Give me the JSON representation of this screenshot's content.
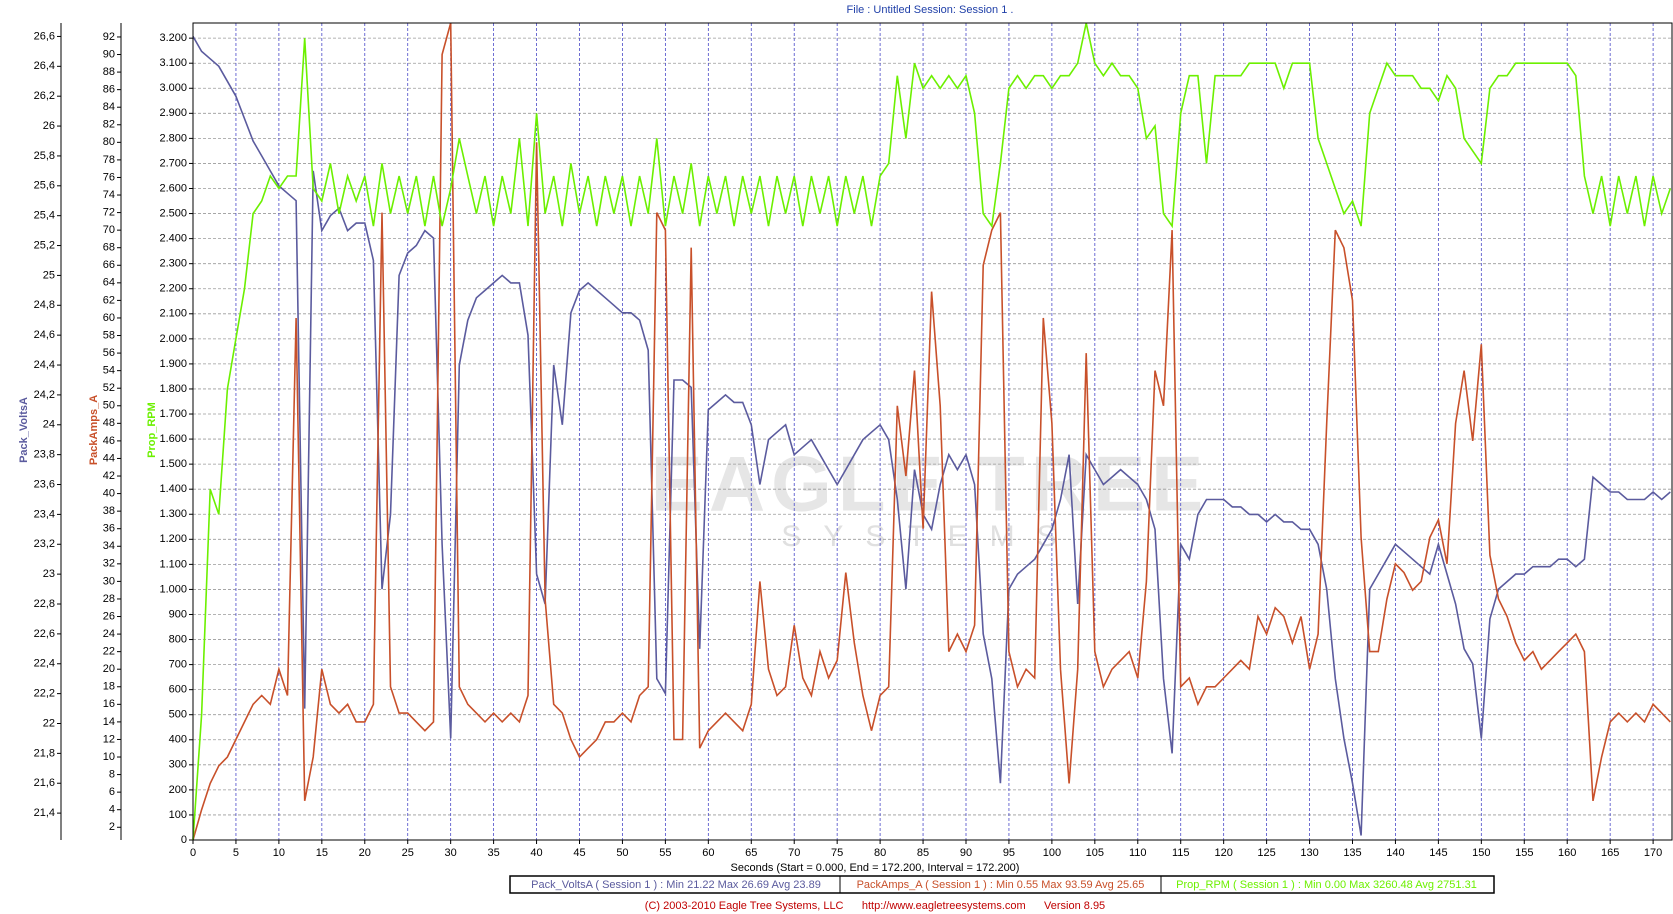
{
  "chart_data": {
    "type": "line",
    "title": "File : Untitled   Session: Session 1 .",
    "xlabel": "Seconds (Start = 0.000,  End = 172.200,  Interval = 172.200)",
    "footer": "(C) 2003-2010 Eagle Tree Systems, LLC      http://www.eagletreesystems.com      Version 8.95",
    "watermark": [
      "EAGLE TREE",
      "SYSTEMS"
    ],
    "ylabel": "Prop_RPM",
    "y2label": "PackAmps_A",
    "y3label": "Pack_VoltsA",
    "grid": true,
    "xlim": [
      0,
      172.2
    ],
    "xticks": [
      0,
      5,
      10,
      15,
      20,
      25,
      30,
      35,
      40,
      45,
      50,
      55,
      60,
      65,
      70,
      75,
      80,
      85,
      90,
      95,
      100,
      105,
      110,
      115,
      120,
      125,
      130,
      135,
      140,
      145,
      150,
      155,
      160,
      165,
      170
    ],
    "ylim": [
      0,
      3260.48
    ],
    "yticks": [
      0,
      100,
      200,
      300,
      400,
      500,
      600,
      700,
      800,
      900,
      {
        "value": 1000,
        "label": "1.000"
      },
      {
        "value": 1100,
        "label": "1.100"
      },
      {
        "value": 1200,
        "label": "1.200"
      },
      {
        "value": 1300,
        "label": "1.300"
      },
      {
        "value": 1400,
        "label": "1.400"
      },
      {
        "value": 1500,
        "label": "1.500"
      },
      {
        "value": 1600,
        "label": "1.600"
      },
      {
        "value": 1700,
        "label": "1.700"
      },
      {
        "value": 1800,
        "label": "1.800"
      },
      {
        "value": 1900,
        "label": "1.900"
      },
      {
        "value": 2000,
        "label": "2.000"
      },
      {
        "value": 2100,
        "label": "2.100"
      },
      {
        "value": 2200,
        "label": "2.200"
      },
      {
        "value": 2300,
        "label": "2.300"
      },
      {
        "value": 2400,
        "label": "2.400"
      },
      {
        "value": 2500,
        "label": "2.500"
      },
      {
        "value": 2600,
        "label": "2.600"
      },
      {
        "value": 2700,
        "label": "2.700"
      },
      {
        "value": 2800,
        "label": "2.800"
      },
      {
        "value": 2900,
        "label": "2.900"
      },
      {
        "value": 3000,
        "label": "3.000"
      },
      {
        "value": 3100,
        "label": "3.100"
      },
      {
        "value": 3200,
        "label": "3.200"
      }
    ],
    "y2lim": [
      0.55,
      93.59
    ],
    "y2ticks": [
      2,
      4,
      6,
      8,
      10,
      12,
      14,
      16,
      18,
      20,
      22,
      24,
      26,
      28,
      30,
      32,
      34,
      36,
      38,
      40,
      42,
      44,
      46,
      48,
      50,
      52,
      54,
      56,
      58,
      60,
      62,
      64,
      66,
      68,
      70,
      72,
      74,
      76,
      78,
      80,
      82,
      84,
      86,
      88,
      90,
      92
    ],
    "y3lim": [
      21.22,
      26.69
    ],
    "y3ticks": [
      {
        "value": 21.4,
        "label": "21,4"
      },
      {
        "value": 21.6,
        "label": "21,6"
      },
      {
        "value": 21.8,
        "label": "21,8"
      },
      22,
      {
        "value": 22.2,
        "label": "22,2"
      },
      {
        "value": 22.4,
        "label": "22,4"
      },
      {
        "value": 22.6,
        "label": "22,6"
      },
      {
        "value": 22.8,
        "label": "22,8"
      },
      23,
      {
        "value": 23.2,
        "label": "23,2"
      },
      {
        "value": 23.4,
        "label": "23,4"
      },
      {
        "value": 23.6,
        "label": "23,6"
      },
      {
        "value": 23.8,
        "label": "23,8"
      },
      24,
      {
        "value": 24.2,
        "label": "24,2"
      },
      {
        "value": 24.4,
        "label": "24,4"
      },
      {
        "value": 24.6,
        "label": "24,6"
      },
      {
        "value": 24.8,
        "label": "24,8"
      },
      25,
      {
        "value": 25.2,
        "label": "25,2"
      },
      {
        "value": 25.4,
        "label": "25,4"
      },
      {
        "value": 25.6,
        "label": "25,6"
      },
      {
        "value": 25.8,
        "label": "25,8"
      },
      26,
      {
        "value": 26.2,
        "label": "26,2"
      },
      {
        "value": 26.4,
        "label": "26,4"
      },
      {
        "value": 26.6,
        "label": "26,6"
      }
    ],
    "legend": [
      "Pack_VoltsA ( Session 1 ) : Min 21.22   Max 26.69   Avg 23.89",
      "PackAmps_A ( Session 1 ) : Min 0.55   Max 93.59   Avg 25.65",
      "Prop_RPM ( Session 1 ) : Min 0.00   Max 3260.48   Avg 2751.31"
    ],
    "x": [
      0,
      1,
      2,
      3,
      4,
      5,
      6,
      7,
      8,
      9,
      10,
      11,
      12,
      13,
      14,
      15,
      16,
      17,
      18,
      19,
      20,
      21,
      22,
      23,
      24,
      25,
      26,
      27,
      28,
      29,
      30,
      31,
      32,
      33,
      34,
      35,
      36,
      37,
      38,
      39,
      40,
      41,
      42,
      43,
      44,
      45,
      46,
      47,
      48,
      49,
      50,
      51,
      52,
      53,
      54,
      55,
      56,
      57,
      58,
      59,
      60,
      61,
      62,
      63,
      64,
      65,
      66,
      67,
      68,
      69,
      70,
      71,
      72,
      73,
      74,
      75,
      76,
      77,
      78,
      79,
      80,
      81,
      82,
      83,
      84,
      85,
      86,
      87,
      88,
      89,
      90,
      91,
      92,
      93,
      94,
      95,
      96,
      97,
      98,
      99,
      100,
      101,
      102,
      103,
      104,
      105,
      106,
      107,
      108,
      109,
      110,
      111,
      112,
      113,
      114,
      115,
      116,
      117,
      118,
      119,
      120,
      121,
      122,
      123,
      124,
      125,
      126,
      127,
      128,
      129,
      130,
      131,
      132,
      133,
      134,
      135,
      136,
      137,
      138,
      139,
      140,
      141,
      142,
      143,
      144,
      145,
      146,
      147,
      148,
      149,
      150,
      151,
      152,
      153,
      154,
      155,
      156,
      157,
      158,
      159,
      160,
      161,
      162,
      163,
      164,
      165,
      166,
      167,
      168,
      169,
      170,
      171,
      172
    ],
    "series": [
      {
        "name": "Pack_VoltsA",
        "color": "#5b5b9e",
        "axis": "y3",
        "values": [
          26.6,
          26.5,
          26.45,
          26.4,
          26.3,
          26.2,
          26.05,
          25.9,
          25.8,
          25.7,
          25.6,
          25.55,
          25.5,
          22.1,
          25.7,
          25.3,
          25.4,
          25.45,
          25.3,
          25.35,
          25.35,
          25.1,
          22.9,
          23.4,
          25.0,
          25.15,
          25.2,
          25.3,
          25.25,
          23.2,
          21.9,
          24.4,
          24.7,
          24.85,
          24.9,
          24.95,
          25.0,
          24.95,
          24.95,
          24.6,
          23.0,
          22.8,
          24.4,
          24.0,
          24.75,
          24.9,
          24.95,
          24.9,
          24.85,
          24.8,
          24.75,
          24.75,
          24.7,
          24.5,
          22.3,
          22.2,
          24.3,
          24.3,
          24.25,
          22.5,
          24.1,
          24.15,
          24.2,
          24.15,
          24.15,
          24.0,
          23.6,
          23.9,
          23.95,
          24.0,
          23.8,
          23.85,
          23.9,
          23.8,
          23.7,
          23.6,
          23.7,
          23.8,
          23.9,
          23.95,
          24.0,
          23.9,
          23.5,
          22.9,
          23.7,
          23.4,
          23.3,
          23.6,
          23.8,
          23.7,
          23.8,
          23.6,
          22.6,
          22.3,
          21.6,
          22.9,
          23.0,
          23.05,
          23.1,
          23.2,
          23.3,
          23.5,
          23.8,
          22.8,
          23.8,
          23.7,
          23.6,
          23.65,
          23.7,
          23.65,
          23.6,
          23.5,
          23.3,
          22.3,
          21.8,
          23.2,
          23.1,
          23.4,
          23.5,
          23.5,
          23.5,
          23.45,
          23.45,
          23.4,
          23.4,
          23.35,
          23.4,
          23.35,
          23.35,
          23.3,
          23.3,
          23.2,
          22.9,
          22.3,
          21.9,
          21.6,
          21.25,
          22.9,
          23.0,
          23.1,
          23.2,
          23.15,
          23.1,
          23.05,
          23.0,
          23.2,
          23.0,
          22.8,
          22.5,
          22.4,
          21.9,
          22.7,
          22.9,
          22.95,
          23.0,
          23.0,
          23.05,
          23.05,
          23.05,
          23.1,
          23.1,
          23.05,
          23.1,
          23.65,
          23.6,
          23.55,
          23.55,
          23.5,
          23.5,
          23.5,
          23.55,
          23.5,
          23.55
        ]
      },
      {
        "name": "PackAmps_A",
        "color": "#c8502a",
        "axis": "y2",
        "values": [
          0.55,
          4,
          7,
          9,
          10,
          12,
          14,
          16,
          17,
          16,
          20,
          17,
          60,
          5,
          10,
          20,
          16,
          15,
          16,
          14,
          14,
          16,
          72,
          18,
          15,
          15,
          14,
          13,
          14,
          90,
          93.59,
          18,
          16,
          15,
          14,
          15,
          14,
          15,
          14,
          17,
          80,
          28,
          16,
          15,
          12,
          10,
          11,
          12,
          14,
          14,
          15,
          14,
          17,
          18,
          72,
          70,
          12,
          12,
          68,
          11,
          13,
          14,
          15,
          14,
          13,
          16,
          30,
          20,
          17,
          18,
          25,
          19,
          17,
          22,
          19,
          21,
          31,
          23,
          17,
          13,
          17,
          18,
          50,
          42,
          54,
          36,
          63,
          50,
          22,
          24,
          22,
          25,
          66,
          70,
          72,
          22,
          18,
          20,
          19,
          60,
          48,
          20,
          7,
          20,
          56,
          22,
          18,
          20,
          21,
          22,
          19,
          30,
          54,
          50,
          70,
          18,
          19,
          16,
          18,
          18,
          19,
          20,
          21,
          20,
          26,
          24,
          27,
          26,
          23,
          26,
          20,
          24,
          48,
          70,
          68,
          62,
          35,
          22,
          22,
          28,
          32,
          31,
          29,
          30,
          35,
          37,
          32,
          48,
          54,
          46,
          57,
          33,
          28,
          26,
          23,
          21,
          22,
          20,
          21,
          22,
          23,
          24,
          22,
          5,
          10,
          14,
          15,
          14,
          15,
          14,
          16,
          15,
          14
        ]
      },
      {
        "name": "Prop_RPM",
        "color": "#6cf000",
        "axis": "y",
        "values": [
          0,
          500,
          1400,
          1300,
          1800,
          2000,
          2200,
          2500,
          2550,
          2650,
          2600,
          2650,
          2650,
          3200,
          2600,
          2550,
          2700,
          2500,
          2650,
          2550,
          2650,
          2450,
          2700,
          2500,
          2650,
          2500,
          2650,
          2450,
          2650,
          2450,
          2600,
          2800,
          2650,
          2500,
          2650,
          2450,
          2650,
          2500,
          2800,
          2450,
          2900,
          2500,
          2650,
          2450,
          2700,
          2500,
          2650,
          2450,
          2650,
          2500,
          2650,
          2450,
          2650,
          2500,
          2800,
          2450,
          2650,
          2500,
          2700,
          2450,
          2650,
          2500,
          2650,
          2450,
          2650,
          2500,
          2650,
          2450,
          2650,
          2500,
          2650,
          2450,
          2650,
          2500,
          2650,
          2450,
          2650,
          2500,
          2650,
          2450,
          2650,
          2700,
          3050,
          2800,
          3100,
          3000,
          3050,
          3000,
          3050,
          3000,
          3050,
          2900,
          2500,
          2450,
          2700,
          3000,
          3050,
          3000,
          3050,
          3050,
          3000,
          3050,
          3050,
          3100,
          3260,
          3100,
          3050,
          3100,
          3050,
          3050,
          3000,
          2800,
          2850,
          2500,
          2450,
          2900,
          3050,
          3050,
          2700,
          3050,
          3050,
          3050,
          3050,
          3100,
          3100,
          3100,
          3100,
          3000,
          3100,
          3100,
          3100,
          2800,
          2700,
          2600,
          2500,
          2550,
          2450,
          2900,
          3000,
          3100,
          3050,
          3050,
          3050,
          3000,
          3000,
          2950,
          3050,
          3000,
          2800,
          2750,
          2700,
          3000,
          3050,
          3050,
          3100,
          3100,
          3100,
          3100,
          3100,
          3100,
          3100,
          3050,
          2650,
          2500,
          2650,
          2450,
          2650,
          2500,
          2650,
          2450,
          2650,
          2500,
          2600
        ]
      }
    ]
  }
}
